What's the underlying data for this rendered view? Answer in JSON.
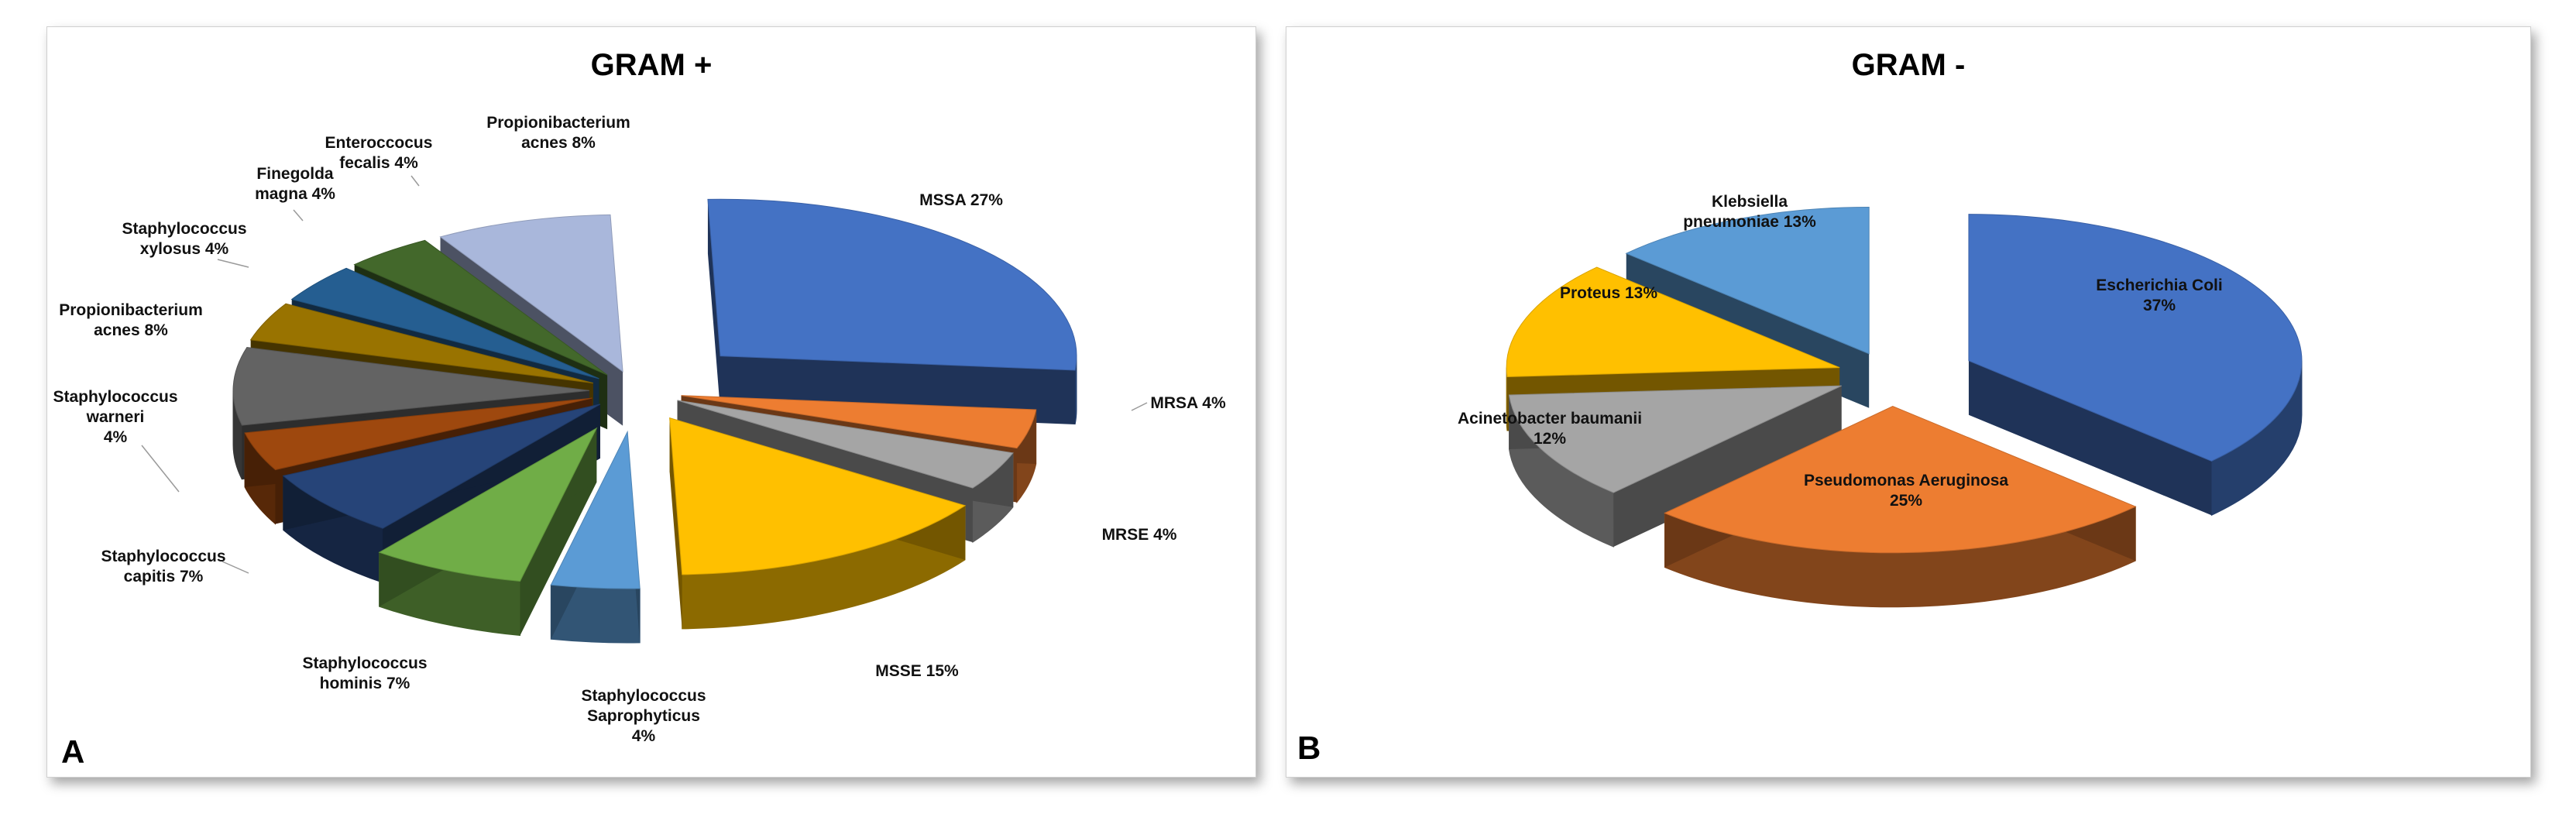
{
  "chart_data": [
    {
      "type": "pie",
      "panel_label": "A",
      "title": "GRAM +",
      "slices": [
        {
          "label": "MSSA 27%",
          "value": 27,
          "color": "#4472C4"
        },
        {
          "label": "MRSA 4%",
          "value": 4,
          "color": "#ED7D31"
        },
        {
          "label": "MRSE 4%",
          "value": 4,
          "color": "#A5A5A5"
        },
        {
          "label": "MSSE 15%",
          "value": 15,
          "color": "#FFC000"
        },
        {
          "label": "Staphylococcus Saprophyticus 4%",
          "value": 4,
          "color": "#5B9BD5"
        },
        {
          "label": "Staphylococcus hominis 7%",
          "value": 7,
          "color": "#70AD47"
        },
        {
          "label": "Staphylococcus capitis 7%",
          "value": 7,
          "color": "#264478"
        },
        {
          "label": "Staphylococcus warneri 4%",
          "value": 4,
          "color": "#9E480E"
        },
        {
          "label": "Propionibacterium acnes 8%",
          "value": 8,
          "color": "#636363"
        },
        {
          "label": "Staphylococcus xylosus 4%",
          "value": 4,
          "color": "#997300"
        },
        {
          "label": "Finegolda magna 4%",
          "value": 4,
          "color": "#255E91"
        },
        {
          "label": "Enteroccocus fecalis 4%",
          "value": 4,
          "color": "#43682B"
        },
        {
          "label": "Propionibacterium acnes 8%",
          "value": 8,
          "color": "#A9B7DB"
        }
      ]
    },
    {
      "type": "pie",
      "panel_label": "B",
      "title": "GRAM -",
      "slices": [
        {
          "label": "Escherichia Coli 37%",
          "value": 37,
          "color": "#4472C4"
        },
        {
          "label": "Pseudomonas Aeruginosa 25%",
          "value": 25,
          "color": "#ED7D31"
        },
        {
          "label": "Acinetobacter baumanii 12%",
          "value": 12,
          "color": "#A5A5A5"
        },
        {
          "label": "Proteus 13%",
          "value": 13,
          "color": "#FFC000"
        },
        {
          "label": "Klebsiella pneumoniae 13%",
          "value": 13,
          "color": "#5B9BD5"
        }
      ]
    }
  ]
}
